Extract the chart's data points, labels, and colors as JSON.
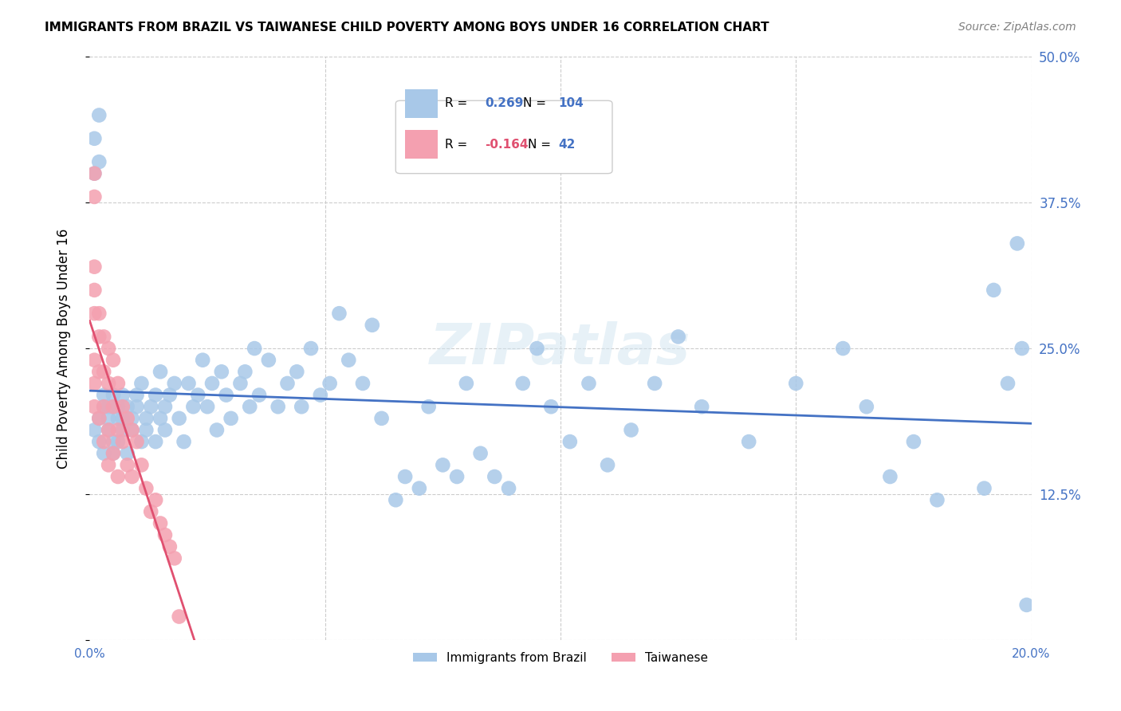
{
  "title": "IMMIGRANTS FROM BRAZIL VS TAIWANESE CHILD POVERTY AMONG BOYS UNDER 16 CORRELATION CHART",
  "source": "Source: ZipAtlas.com",
  "ylabel": "Child Poverty Among Boys Under 16",
  "xlabel_brazil": "Immigrants from Brazil",
  "xlabel_taiwanese": "Taiwanese",
  "x_min": 0.0,
  "x_max": 0.2,
  "y_min": 0.0,
  "y_max": 0.5,
  "x_ticks": [
    0.0,
    0.05,
    0.1,
    0.15,
    0.2
  ],
  "x_tick_labels": [
    "0.0%",
    "",
    "",
    "",
    "20.0%"
  ],
  "y_ticks": [
    0.0,
    0.125,
    0.25,
    0.375,
    0.5
  ],
  "y_tick_labels": [
    "",
    "12.5%",
    "25.0%",
    "37.5%",
    "50.0%"
  ],
  "brazil_R": 0.269,
  "brazil_N": 104,
  "taiwan_R": -0.164,
  "taiwan_N": 42,
  "brazil_color": "#a8c8e8",
  "taiwan_color": "#f4a0b0",
  "brazil_line_color": "#4472c4",
  "taiwan_line_color": "#e05070",
  "watermark": "ZIPatlas",
  "brazil_scatter_x": [
    0.001,
    0.002,
    0.002,
    0.003,
    0.003,
    0.003,
    0.004,
    0.004,
    0.004,
    0.005,
    0.005,
    0.005,
    0.006,
    0.006,
    0.006,
    0.007,
    0.007,
    0.007,
    0.008,
    0.008,
    0.009,
    0.009,
    0.01,
    0.01,
    0.011,
    0.011,
    0.012,
    0.012,
    0.013,
    0.014,
    0.014,
    0.015,
    0.015,
    0.016,
    0.016,
    0.017,
    0.018,
    0.019,
    0.02,
    0.021,
    0.022,
    0.023,
    0.024,
    0.025,
    0.026,
    0.027,
    0.028,
    0.029,
    0.03,
    0.032,
    0.033,
    0.034,
    0.035,
    0.036,
    0.038,
    0.04,
    0.042,
    0.044,
    0.045,
    0.047,
    0.049,
    0.051,
    0.053,
    0.055,
    0.058,
    0.06,
    0.062,
    0.065,
    0.067,
    0.07,
    0.072,
    0.075,
    0.078,
    0.08,
    0.083,
    0.086,
    0.089,
    0.092,
    0.095,
    0.098,
    0.102,
    0.106,
    0.11,
    0.115,
    0.12,
    0.125,
    0.13,
    0.14,
    0.15,
    0.16,
    0.165,
    0.17,
    0.175,
    0.18,
    0.19,
    0.192,
    0.195,
    0.197,
    0.198,
    0.199,
    0.001,
    0.001,
    0.002,
    0.002
  ],
  "brazil_scatter_y": [
    0.18,
    0.19,
    0.17,
    0.2,
    0.16,
    0.21,
    0.19,
    0.18,
    0.2,
    0.17,
    0.21,
    0.16,
    0.19,
    0.2,
    0.17,
    0.18,
    0.21,
    0.19,
    0.2,
    0.16,
    0.19,
    0.18,
    0.21,
    0.2,
    0.17,
    0.22,
    0.19,
    0.18,
    0.2,
    0.17,
    0.21,
    0.19,
    0.23,
    0.18,
    0.2,
    0.21,
    0.22,
    0.19,
    0.17,
    0.22,
    0.2,
    0.21,
    0.24,
    0.2,
    0.22,
    0.18,
    0.23,
    0.21,
    0.19,
    0.22,
    0.23,
    0.2,
    0.25,
    0.21,
    0.24,
    0.2,
    0.22,
    0.23,
    0.2,
    0.25,
    0.21,
    0.22,
    0.28,
    0.24,
    0.22,
    0.27,
    0.19,
    0.12,
    0.14,
    0.13,
    0.2,
    0.15,
    0.14,
    0.22,
    0.16,
    0.14,
    0.13,
    0.22,
    0.25,
    0.2,
    0.17,
    0.22,
    0.15,
    0.18,
    0.22,
    0.26,
    0.2,
    0.17,
    0.22,
    0.25,
    0.2,
    0.14,
    0.17,
    0.12,
    0.13,
    0.3,
    0.22,
    0.34,
    0.25,
    0.03,
    0.43,
    0.4,
    0.41,
    0.45
  ],
  "taiwan_scatter_x": [
    0.001,
    0.001,
    0.001,
    0.001,
    0.001,
    0.001,
    0.001,
    0.001,
    0.002,
    0.002,
    0.002,
    0.002,
    0.003,
    0.003,
    0.003,
    0.003,
    0.004,
    0.004,
    0.004,
    0.004,
    0.005,
    0.005,
    0.005,
    0.006,
    0.006,
    0.006,
    0.007,
    0.007,
    0.008,
    0.008,
    0.009,
    0.009,
    0.01,
    0.011,
    0.012,
    0.013,
    0.014,
    0.015,
    0.016,
    0.017,
    0.018,
    0.019
  ],
  "taiwan_scatter_y": [
    0.4,
    0.38,
    0.32,
    0.3,
    0.28,
    0.24,
    0.22,
    0.2,
    0.28,
    0.26,
    0.23,
    0.19,
    0.26,
    0.23,
    0.2,
    0.17,
    0.25,
    0.22,
    0.18,
    0.15,
    0.24,
    0.2,
    0.16,
    0.22,
    0.18,
    0.14,
    0.2,
    0.17,
    0.19,
    0.15,
    0.18,
    0.14,
    0.17,
    0.15,
    0.13,
    0.11,
    0.12,
    0.1,
    0.09,
    0.08,
    0.07,
    0.02
  ]
}
